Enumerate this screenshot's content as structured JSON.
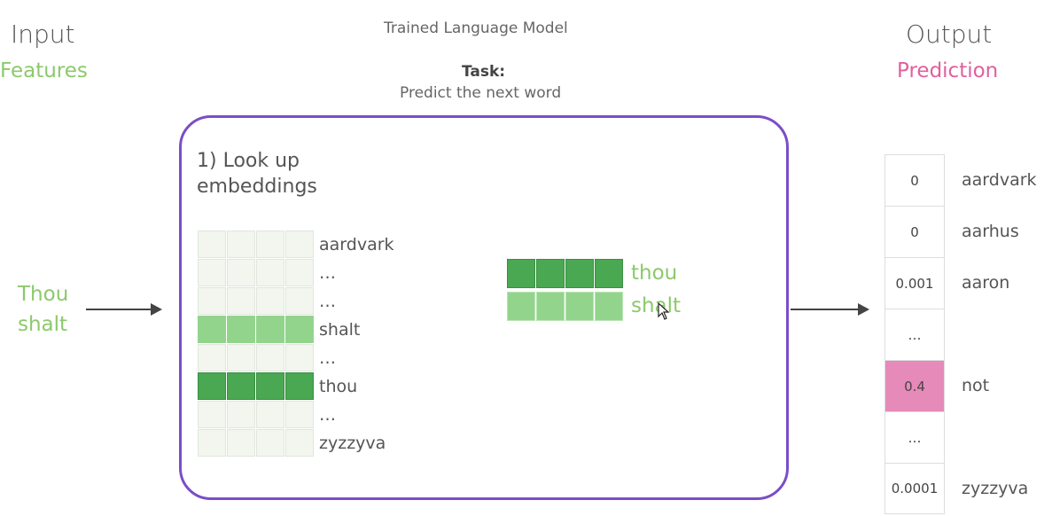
{
  "header": {
    "input_title": "Input",
    "input_subtitle": "Features",
    "model_title": "Trained Language Model",
    "task_label": "Task:",
    "task_text": "Predict the next word",
    "output_title": "Output",
    "output_subtitle": "Prediction"
  },
  "input": {
    "words": [
      "Thou",
      "shalt"
    ]
  },
  "model": {
    "step_label_line1": "1) Look up",
    "step_label_line2": "embeddings",
    "vocab_rows": [
      {
        "label": "aardvark",
        "state": "none"
      },
      {
        "label": "…",
        "state": "none"
      },
      {
        "label": "…",
        "state": "none"
      },
      {
        "label": "shalt",
        "state": "light"
      },
      {
        "label": "…",
        "state": "none"
      },
      {
        "label": "thou",
        "state": "dark"
      },
      {
        "label": "…",
        "state": "none"
      },
      {
        "label": "zyzzyva",
        "state": "none"
      }
    ],
    "looked_up": [
      {
        "label": "thou",
        "state": "dark"
      },
      {
        "label": "shalt",
        "state": "light"
      }
    ]
  },
  "output": {
    "rows": [
      {
        "value": "0",
        "word": "aardvark",
        "highlight": false
      },
      {
        "value": "0",
        "word": "aarhus",
        "highlight": false
      },
      {
        "value": "0.001",
        "word": "aaron",
        "highlight": false
      },
      {
        "value": "…",
        "word": "",
        "highlight": false
      },
      {
        "value": "0.4",
        "word": "not",
        "highlight": true
      },
      {
        "value": "…",
        "word": "",
        "highlight": false
      },
      {
        "value": "0.0001",
        "word": "zyzzyva",
        "highlight": false
      }
    ]
  },
  "colors": {
    "accent_purple": "#7a4ec7",
    "green_dark": "#49a851",
    "green_light": "#93d48d",
    "pink": "#e68ab9"
  }
}
